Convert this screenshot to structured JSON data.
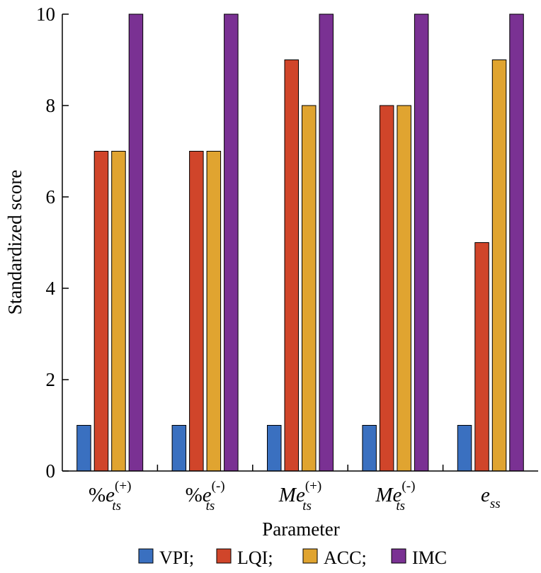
{
  "chart_data": {
    "type": "bar",
    "categories": [
      {
        "prefix": "%",
        "base": "e",
        "sub": "ts",
        "sup": "(+)"
      },
      {
        "prefix": "%",
        "base": "e",
        "sub": "ts",
        "sup": "(-)"
      },
      {
        "prefix": "",
        "base": "Me",
        "sub": "ts",
        "sup": "(+)"
      },
      {
        "prefix": "",
        "base": "Me",
        "sub": "ts",
        "sup": "(-)"
      },
      {
        "prefix": "",
        "base": "e",
        "sub": "ss",
        "sup": ""
      }
    ],
    "series": [
      {
        "name": "VPI;",
        "color": "#3a70c0",
        "values": [
          1,
          1,
          1,
          1,
          1
        ]
      },
      {
        "name": "LQI;",
        "color": "#d0452a",
        "values": [
          7,
          7,
          9,
          8,
          5
        ]
      },
      {
        "name": "ACC;",
        "color": "#e0a430",
        "values": [
          7,
          7,
          8,
          8,
          9
        ]
      },
      {
        "name": "IMC",
        "color": "#7a3193",
        "values": [
          10,
          10,
          10,
          10,
          10
        ]
      }
    ],
    "yticks": [
      "0",
      "2",
      "4",
      "6",
      "8",
      "10"
    ],
    "xlabel": "Parameter",
    "ylabel": "Standardized score",
    "ylim": [
      0,
      10
    ],
    "grid": false,
    "legend_position": "bottom"
  }
}
